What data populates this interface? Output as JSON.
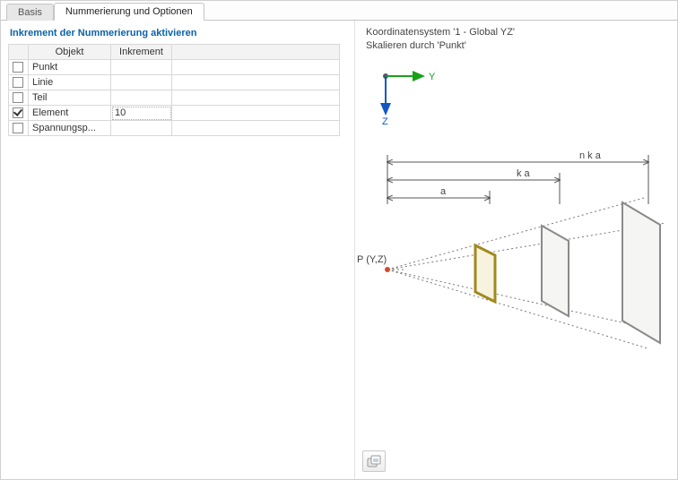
{
  "tabs": {
    "inactive": "Basis",
    "active": "Nummerierung und Optionen"
  },
  "leftPanel": {
    "title": "Inkrement der Nummerierung aktivieren",
    "columns": {
      "object": "Objekt",
      "increment": "Inkrement"
    },
    "rows": [
      {
        "checked": false,
        "object": "Punkt",
        "increment": ""
      },
      {
        "checked": false,
        "object": "Linie",
        "increment": ""
      },
      {
        "checked": false,
        "object": "Teil",
        "increment": ""
      },
      {
        "checked": true,
        "object": "Element",
        "increment": "10",
        "active": true
      },
      {
        "checked": false,
        "object": "Spannungsp...",
        "increment": ""
      }
    ]
  },
  "preview": {
    "line1": "Koordinatensystem '1 - Global YZ'",
    "line2": "Skalieren durch 'Punkt'",
    "axisY": "Y",
    "axisZ": "Z",
    "pLabel": "P (Y,Z)",
    "dimA": "a",
    "dimKA": "k a",
    "dimNKA": "n k a",
    "colors": {
      "axisY": "#17a11a",
      "axisZ": "#1357c4",
      "dot": "#d44a2c",
      "rectHL": "#a08a1c",
      "rectNorm": "#8a8a8a",
      "dotted": "#777777",
      "text": "#444444",
      "fill": "#f5f5f4"
    }
  },
  "iconButton": {
    "title": "options-icon"
  }
}
